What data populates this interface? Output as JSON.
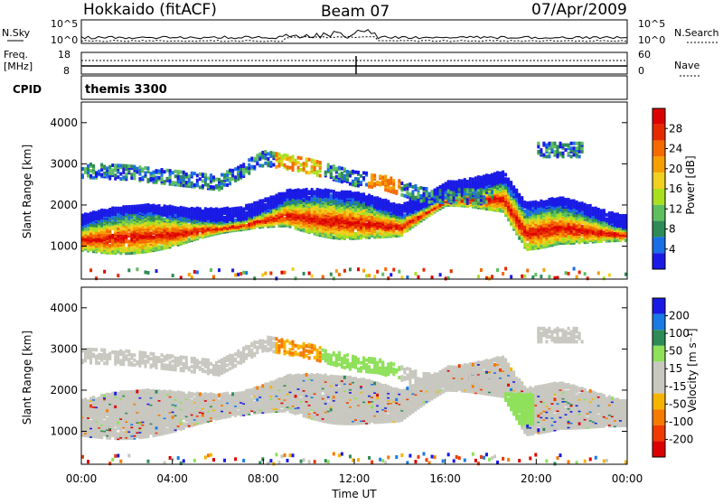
{
  "header": {
    "left": "Hokkaido (fitACF)",
    "center": "Beam 07",
    "right": "07/Apr/2009"
  },
  "top_panels": {
    "nsky_label": "N.Sky",
    "nsearch_label": "N.Search",
    "nsky_ticks": [
      "10^5",
      "10^0"
    ],
    "nsearch_ticks": [
      "10^5",
      "10^0"
    ],
    "freq_label": "Freq.",
    "freq_unit": "[MHz]",
    "freq_ticks": [
      "18",
      "8"
    ],
    "nave_label": "Nave",
    "nave_ticks": [
      "60",
      "0"
    ],
    "cpid_label": "CPID",
    "cpid_value": "themis 3300"
  },
  "colors": {
    "power_scale": [
      "#1a1ae6",
      "#1a6ee6",
      "#2e8b57",
      "#5fbf5f",
      "#a8e020",
      "#f0d020",
      "#f5a000",
      "#f56a00",
      "#e62a00",
      "#dd0000"
    ],
    "velocity_scale": [
      "#1a1ae6",
      "#1a7ae6",
      "#2e8b57",
      "#8fe05a",
      "#c8c8c0",
      "#c8c8c0",
      "#f5b400",
      "#f57a00",
      "#ef3a00",
      "#dd0000"
    ]
  },
  "chart_data": [
    {
      "type": "heatmap",
      "name": "power-panel",
      "xlabel": "",
      "ylabel": "Slant Range [km]",
      "yticks": [
        "1000",
        "2000",
        "3000",
        "4000"
      ],
      "ylim": [
        200,
        4500
      ],
      "xlim": [
        0,
        24
      ],
      "colorbar": {
        "label": "Power [dB]",
        "ticks": [
          "4",
          "8",
          "12",
          "16",
          "20",
          "24",
          "28"
        ]
      },
      "bands": [
        {
          "x": [
            0,
            4,
            7,
            9,
            11,
            12.5,
            14,
            16,
            18.5,
            19.5,
            21,
            24
          ],
          "center": [
            1200,
            1350,
            1550,
            1800,
            1650,
            1600,
            1500,
            2150,
            2200,
            1350,
            1500,
            1300
          ]
        },
        {
          "x": [
            0,
            2,
            6,
            8,
            10,
            12,
            13,
            15,
            18
          ],
          "center": [
            2900,
            2850,
            2600,
            3200,
            3000,
            2700,
            2650,
            2300,
            2250
          ]
        }
      ]
    },
    {
      "type": "heatmap",
      "name": "velocity-panel",
      "xlabel": "Time UT",
      "ylabel": "Slant Range [km]",
      "yticks": [
        "1000",
        "2000",
        "3000",
        "4000"
      ],
      "ylim": [
        200,
        4500
      ],
      "xlim": [
        0,
        24
      ],
      "xticks": [
        "00:00",
        "04:00",
        "08:00",
        "12:00",
        "16:00",
        "20:00",
        "00:00"
      ],
      "colorbar": {
        "label": "Velocity [m s⁻¹]",
        "ticks": [
          "200",
          "100",
          "50",
          "15",
          "-15",
          "-50",
          "-100",
          "-200"
        ]
      }
    }
  ]
}
